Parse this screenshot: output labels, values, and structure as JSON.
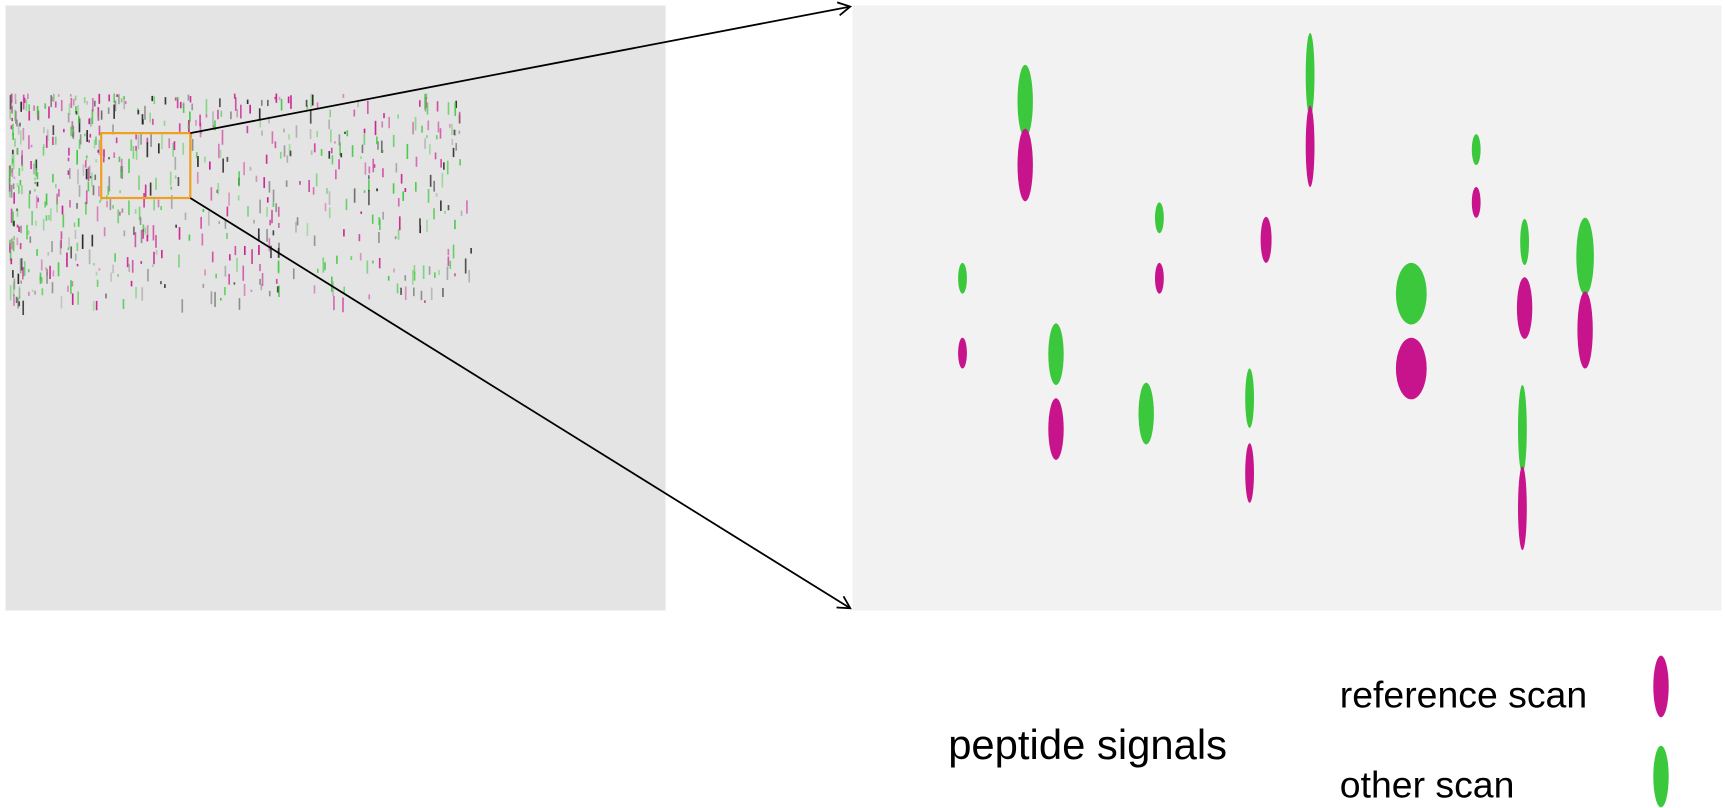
{
  "legend": {
    "title": "peptide signals",
    "items": [
      "reference scan",
      "other scan"
    ]
  }
}
